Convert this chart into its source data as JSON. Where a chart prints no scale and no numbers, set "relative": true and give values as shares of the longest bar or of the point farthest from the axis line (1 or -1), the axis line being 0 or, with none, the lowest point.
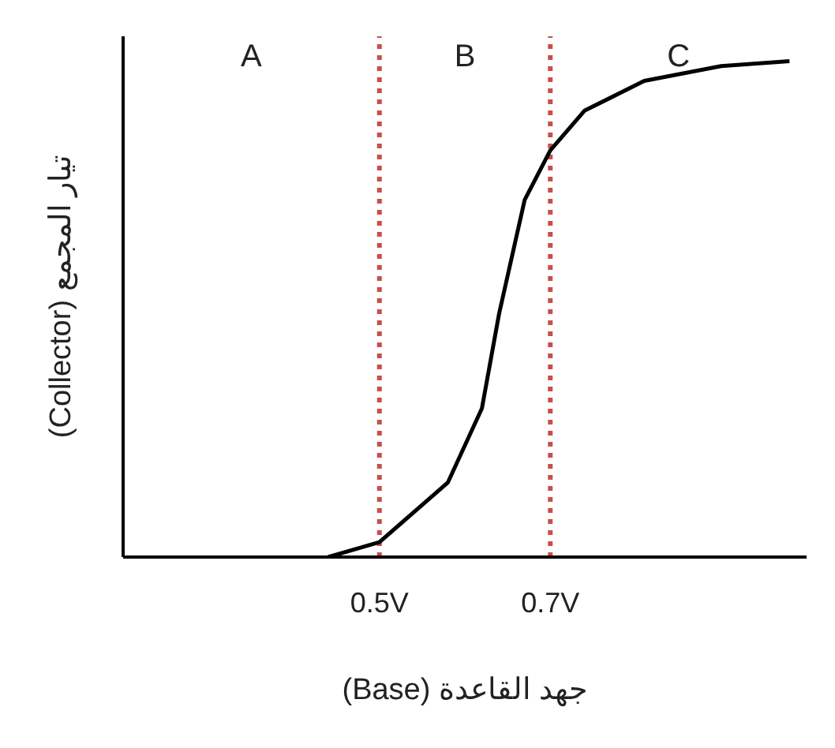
{
  "chart_data": {
    "type": "line",
    "relative": true,
    "xlabel": "جهد القاعدة (Base)",
    "ylabel": "تيار المجمع (Collector)",
    "x": [
      0.44,
      0.5,
      0.58,
      0.62,
      0.64,
      0.67,
      0.7,
      0.74,
      0.81,
      0.9,
      0.98
    ],
    "xlim": [
      0.2,
      1.0
    ],
    "xticks": [
      {
        "value": 0.5,
        "label": "0.5V"
      },
      {
        "value": 0.7,
        "label": "0.7V"
      }
    ],
    "series": [
      {
        "color": "#000000",
        "values": [
          0,
          0.03,
          0.15,
          0.3,
          0.49,
          0.72,
          0.82,
          0.9,
          0.96,
          0.99,
          1
        ]
      }
    ],
    "ref_lines": [
      {
        "axis": "x",
        "value": 0.5,
        "color": "#c8504a",
        "line_style": "dotted"
      },
      {
        "axis": "x",
        "value": 0.7,
        "color": "#c8504a",
        "line_style": "dotted"
      }
    ],
    "annotations": [
      "A",
      "B",
      "C"
    ],
    "grid": false,
    "legend": false,
    "marker": "none",
    "line_style": "solid"
  }
}
